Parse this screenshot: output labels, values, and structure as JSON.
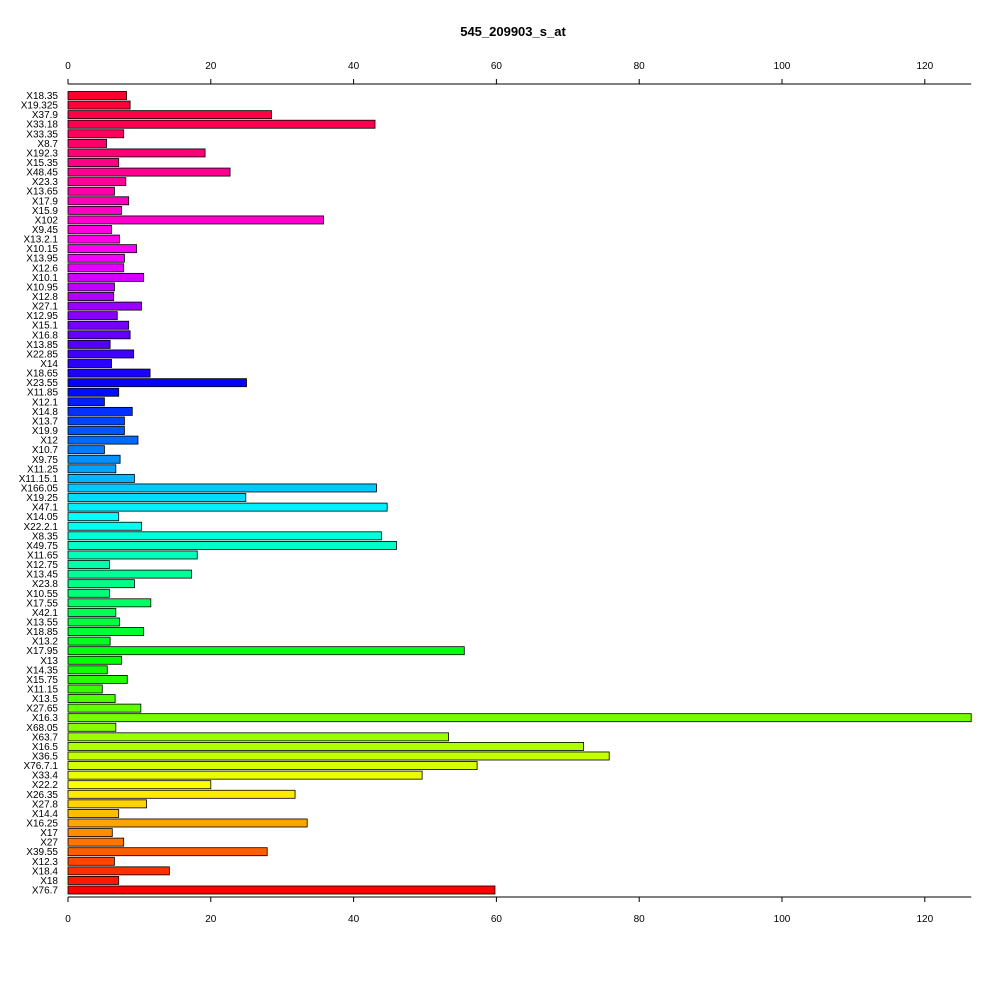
{
  "chart_data": {
    "type": "bar",
    "orientation": "horizontal",
    "title": "545_209903_s_at",
    "xlabel": "",
    "ylabel": "",
    "xlim": [
      0,
      126.5
    ],
    "xticks": [
      0,
      20,
      40,
      60,
      80,
      100,
      120
    ],
    "tick_labels": [
      "0",
      "20",
      "40",
      "60",
      "80",
      "100",
      "120"
    ],
    "axis_positions": [
      "top",
      "bottom"
    ],
    "grid": false,
    "legend": "none",
    "categories": [
      "X18.35",
      "X19.325",
      "X37.9",
      "X33.18",
      "X33.35",
      "X8.7",
      "X192.3",
      "X15.35",
      "X48.45",
      "X23.3",
      "X13.65",
      "X17.9",
      "X15.9",
      "X102",
      "X9.45",
      "X13.2.1",
      "X10.15",
      "X13.95",
      "X12.6",
      "X10.1",
      "X10.95",
      "X12.8",
      "X27.1",
      "X12.95",
      "X15.1",
      "X16.8",
      "X13.85",
      "X22.85",
      "X14",
      "X18.65",
      "X23.55",
      "X11.85",
      "X12.1",
      "X14.8",
      "X13.7",
      "X19.9",
      "X12",
      "X10.7",
      "X9.75",
      "X11.25",
      "X11.15.1",
      "X166.05",
      "X19.25",
      "X47.1",
      "X14.05",
      "X22.2.1",
      "X8.35",
      "X49.75",
      "X11.65",
      "X12.75",
      "X13.45",
      "X23.8",
      "X10.55",
      "X17.55",
      "X42.1",
      "X13.55",
      "X18.85",
      "X13.2",
      "X17.95",
      "X13",
      "X14.35",
      "X15.75",
      "X11.15",
      "X13.5",
      "X27.65",
      "X16.3",
      "X68.05",
      "X63.7",
      "X16.5",
      "X36.5",
      "X76.7.1",
      "X33.4",
      "X22.2",
      "X26.35",
      "X27.8",
      "X14.4",
      "X16.25",
      "X17",
      "X27",
      "X39.55",
      "X12.3",
      "X18.4",
      "X18",
      "X76.7"
    ],
    "values": [
      8.2,
      8.7,
      28.5,
      43.0,
      7.8,
      5.4,
      19.2,
      7.1,
      22.7,
      8.1,
      6.5,
      8.5,
      7.5,
      35.8,
      6.1,
      7.2,
      9.6,
      7.9,
      7.8,
      10.6,
      6.5,
      6.4,
      10.3,
      6.9,
      8.5,
      8.7,
      5.9,
      9.2,
      6.1,
      11.5,
      25.0,
      7.1,
      5.1,
      9.0,
      7.9,
      7.9,
      9.8,
      5.1,
      7.3,
      6.7,
      9.3,
      43.2,
      24.9,
      44.7,
      7.1,
      10.3,
      43.9,
      46.0,
      18.1,
      5.8,
      17.3,
      9.3,
      5.8,
      11.6,
      6.7,
      7.2,
      10.6,
      5.9,
      55.5,
      7.5,
      5.5,
      8.3,
      4.8,
      6.6,
      10.2,
      126.5,
      6.7,
      53.3,
      72.2,
      75.8,
      57.3,
      49.6,
      20.0,
      31.8,
      11.0,
      7.1,
      33.5,
      6.2,
      7.8,
      27.9,
      6.5,
      14.2,
      7.1,
      59.8
    ]
  }
}
